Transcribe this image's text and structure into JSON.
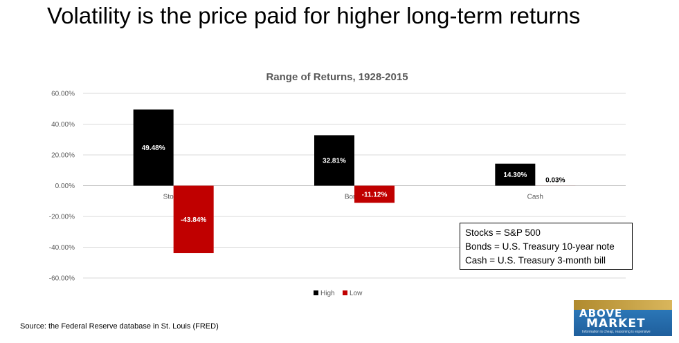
{
  "headline": "Volatility is the price paid for higher long-term returns",
  "chart_data": {
    "type": "bar",
    "title": "Range of Returns, 1928-2015",
    "categories": [
      "Stocks",
      "Bonds",
      "Cash"
    ],
    "series": [
      {
        "name": "High",
        "values": [
          49.48,
          32.81,
          14.3
        ],
        "labels": [
          "49.48%",
          "32.81%",
          "14.30%"
        ],
        "color": "#000000"
      },
      {
        "name": "Low",
        "values": [
          -43.84,
          -11.12,
          0.03
        ],
        "labels": [
          "-43.84%",
          "-11.12%",
          "0.03%"
        ],
        "color": "#c00000"
      }
    ],
    "yticks": [
      "60.00%",
      "40.00%",
      "20.00%",
      "0.00%",
      "-20.00%",
      "-40.00%",
      "-60.00%"
    ],
    "ylim": [
      -60,
      60
    ],
    "grid": true,
    "legend_position": "bottom"
  },
  "notes": [
    "Stocks = S&P 500",
    "Bonds = U.S. Treasury 10-year note",
    "Cash = U.S. Treasury 3-month bill"
  ],
  "source": "Source: the Federal Reserve database in St. Louis (FRED)",
  "logo": {
    "line1": "ABOVE",
    "line2": "MARKET",
    "tagline": "Information is cheap, reasoning is expensive"
  }
}
